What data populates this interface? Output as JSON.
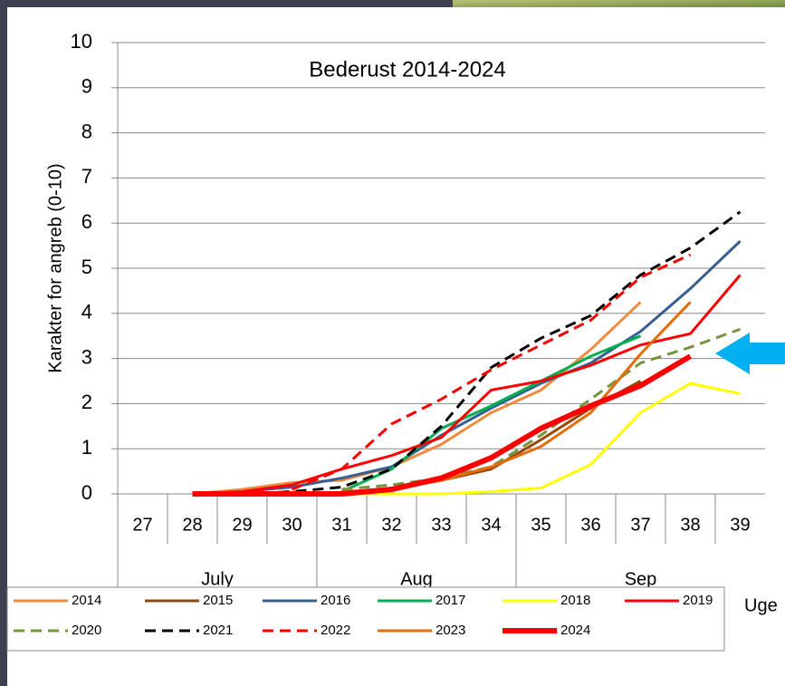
{
  "chart_data": {
    "type": "line",
    "title": "Bederust 2014-2024",
    "ylabel": "Karakter for angreb (0-10)",
    "xlabel": "Uge",
    "categories": [
      "27",
      "28",
      "29",
      "30",
      "31",
      "32",
      "33",
      "34",
      "35",
      "36",
      "37",
      "38",
      "39"
    ],
    "months": [
      "July",
      "July",
      "July",
      "July",
      "Aug",
      "Aug",
      "Aug",
      "Aug",
      "Sep",
      "Sep",
      "Sep",
      "Sep",
      "Sep"
    ],
    "ylim": [
      0,
      10
    ],
    "yticks": [
      0,
      1,
      2,
      3,
      4,
      5,
      6,
      7,
      8,
      9,
      10
    ],
    "grid": true,
    "series": [
      {
        "name": "2014",
        "color": "#f08a3c",
        "values": [
          null,
          0,
          0.1,
          0.25,
          0.3,
          0.6,
          1.1,
          1.8,
          2.3,
          3.2,
          4.25,
          null,
          null
        ]
      },
      {
        "name": "2015",
        "color": "#974706",
        "values": [
          null,
          null,
          null,
          null,
          0,
          0.1,
          0.3,
          0.55,
          1.2,
          1.9,
          2.5,
          null,
          null
        ]
      },
      {
        "name": "2016",
        "color": "#376092",
        "values": [
          null,
          0,
          0.05,
          0.15,
          0.35,
          0.6,
          1.3,
          1.9,
          2.45,
          2.9,
          3.6,
          4.55,
          5.6
        ]
      },
      {
        "name": "2017",
        "color": "#00b050",
        "values": [
          null,
          null,
          null,
          null,
          0.05,
          0.55,
          1.45,
          1.95,
          2.5,
          3.05,
          3.5,
          null,
          null
        ]
      },
      {
        "name": "2018",
        "color": "#ffff00",
        "values": [
          null,
          null,
          null,
          null,
          0,
          0,
          0,
          0.05,
          0.13,
          0.65,
          1.8,
          2.45,
          2.22
        ]
      },
      {
        "name": "2019",
        "color": "#ff0000",
        "values": [
          null,
          0,
          0.05,
          0.2,
          0.55,
          0.85,
          1.25,
          2.3,
          2.5,
          2.85,
          3.3,
          3.55,
          4.85
        ]
      },
      {
        "name": "2020",
        "color": "#77933c",
        "dash": true,
        "values": [
          null,
          null,
          null,
          null,
          0.1,
          0.2,
          0.35,
          0.6,
          1.3,
          2.1,
          2.9,
          3.25,
          3.65
        ]
      },
      {
        "name": "2021",
        "color": "#000000",
        "dash": true,
        "values": [
          null,
          0,
          0,
          0.05,
          0.15,
          0.55,
          1.5,
          2.8,
          3.45,
          3.95,
          4.85,
          5.45,
          6.25
        ]
      },
      {
        "name": "2022",
        "color": "#ff0000",
        "dash": true,
        "values": [
          null,
          null,
          null,
          0.1,
          0.55,
          1.55,
          2.1,
          2.75,
          3.3,
          3.85,
          4.8,
          5.3,
          null
        ]
      },
      {
        "name": "2023",
        "color": "#e46c0a",
        "values": [
          null,
          null,
          null,
          null,
          0.05,
          0.1,
          0.3,
          0.6,
          1.05,
          1.8,
          3.1,
          4.25,
          null
        ]
      },
      {
        "name": "2024",
        "color": "#ff0000",
        "thick": true,
        "values": [
          null,
          0,
          0,
          0,
          0,
          0.1,
          0.35,
          0.8,
          1.45,
          1.95,
          2.4,
          3.05,
          null
        ]
      }
    ]
  }
}
